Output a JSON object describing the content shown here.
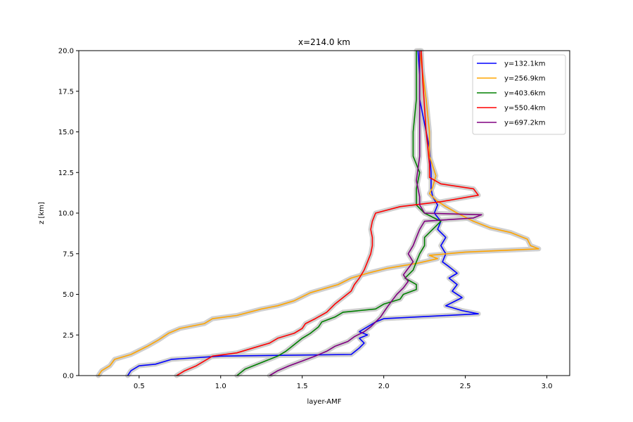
{
  "chart_data": {
    "type": "line",
    "title": "x=214.0 km",
    "xlabel": "layer-AMF",
    "ylabel": "z [km]",
    "xlim": [
      0.13,
      3.14
    ],
    "ylim": [
      0,
      20
    ],
    "xticks": [
      0.5,
      1.0,
      1.5,
      2.0,
      2.5,
      3.0
    ],
    "xtick_labels": [
      "0.5",
      "1.0",
      "1.5",
      "2.0",
      "2.5",
      "3.0"
    ],
    "yticks": [
      0,
      2.5,
      5,
      7.5,
      10,
      12.5,
      15,
      17.5,
      20
    ],
    "ytick_labels": [
      "0.0",
      "2.5",
      "5.0",
      "7.5",
      "10.0",
      "12.5",
      "15.0",
      "17.5",
      "20.0"
    ],
    "grid": false,
    "legend_position": "top-right",
    "band_color": "#c8c8c8",
    "series": [
      {
        "name": "y=132.1km",
        "color": "#0000ff",
        "points": [
          [
            0.43,
            0.0
          ],
          [
            0.45,
            0.3
          ],
          [
            0.5,
            0.6
          ],
          [
            0.6,
            0.7
          ],
          [
            0.7,
            1.0
          ],
          [
            1.0,
            1.2
          ],
          [
            1.8,
            1.3
          ],
          [
            1.85,
            1.7
          ],
          [
            1.88,
            2.0
          ],
          [
            1.85,
            2.3
          ],
          [
            1.9,
            2.5
          ],
          [
            1.85,
            2.7
          ],
          [
            1.9,
            3.0
          ],
          [
            1.95,
            3.3
          ],
          [
            2.0,
            3.5
          ],
          [
            2.58,
            3.8
          ],
          [
            2.48,
            4.0
          ],
          [
            2.38,
            4.3
          ],
          [
            2.48,
            4.8
          ],
          [
            2.42,
            5.2
          ],
          [
            2.45,
            5.6
          ],
          [
            2.4,
            6.0
          ],
          [
            2.45,
            6.3
          ],
          [
            2.4,
            6.7
          ],
          [
            2.36,
            7.0
          ],
          [
            2.38,
            7.5
          ],
          [
            2.35,
            8.0
          ],
          [
            2.38,
            8.5
          ],
          [
            2.33,
            9.0
          ],
          [
            2.35,
            9.5
          ],
          [
            2.31,
            10.0
          ],
          [
            2.33,
            10.5
          ],
          [
            2.3,
            11.0
          ],
          [
            2.29,
            11.5
          ],
          [
            2.29,
            12.5
          ],
          [
            2.28,
            14.0
          ],
          [
            2.25,
            15.5
          ],
          [
            2.22,
            17.0
          ],
          [
            2.22,
            18.5
          ],
          [
            2.21,
            20.0
          ]
        ]
      },
      {
        "name": "y=256.9km",
        "color": "#ffa500",
        "points": [
          [
            0.25,
            0.0
          ],
          [
            0.27,
            0.3
          ],
          [
            0.32,
            0.6
          ],
          [
            0.35,
            1.0
          ],
          [
            0.45,
            1.3
          ],
          [
            0.55,
            1.8
          ],
          [
            0.62,
            2.2
          ],
          [
            0.68,
            2.6
          ],
          [
            0.75,
            2.9
          ],
          [
            0.9,
            3.2
          ],
          [
            0.95,
            3.5
          ],
          [
            1.1,
            3.7
          ],
          [
            1.25,
            4.1
          ],
          [
            1.35,
            4.3
          ],
          [
            1.45,
            4.6
          ],
          [
            1.55,
            5.1
          ],
          [
            1.72,
            5.6
          ],
          [
            1.8,
            6.0
          ],
          [
            1.9,
            6.3
          ],
          [
            2.02,
            6.6
          ],
          [
            2.2,
            6.9
          ],
          [
            2.33,
            7.2
          ],
          [
            2.28,
            7.4
          ],
          [
            2.5,
            7.6
          ],
          [
            2.95,
            7.8
          ],
          [
            2.9,
            8.0
          ],
          [
            2.88,
            8.4
          ],
          [
            2.78,
            8.8
          ],
          [
            2.65,
            9.1
          ],
          [
            2.55,
            9.5
          ],
          [
            2.45,
            10.0
          ],
          [
            2.38,
            10.4
          ],
          [
            2.32,
            10.8
          ],
          [
            2.28,
            11.2
          ],
          [
            2.3,
            11.6
          ],
          [
            2.32,
            12.3
          ],
          [
            2.28,
            13.5
          ],
          [
            2.28,
            15.0
          ],
          [
            2.26,
            17.0
          ],
          [
            2.24,
            18.5
          ],
          [
            2.22,
            20.0
          ]
        ]
      },
      {
        "name": "y=403.6km",
        "color": "#008000",
        "points": [
          [
            1.1,
            0.0
          ],
          [
            1.15,
            0.4
          ],
          [
            1.25,
            0.8
          ],
          [
            1.35,
            1.2
          ],
          [
            1.4,
            1.5
          ],
          [
            1.45,
            1.9
          ],
          [
            1.5,
            2.3
          ],
          [
            1.55,
            2.6
          ],
          [
            1.6,
            3.0
          ],
          [
            1.62,
            3.3
          ],
          [
            1.7,
            3.6
          ],
          [
            1.75,
            3.9
          ],
          [
            1.95,
            4.1
          ],
          [
            2.0,
            4.4
          ],
          [
            2.1,
            4.7
          ],
          [
            2.12,
            5.0
          ],
          [
            2.2,
            5.3
          ],
          [
            2.2,
            5.6
          ],
          [
            2.13,
            6.0
          ],
          [
            2.18,
            6.5
          ],
          [
            2.2,
            7.0
          ],
          [
            2.22,
            7.5
          ],
          [
            2.25,
            8.0
          ],
          [
            2.25,
            8.5
          ],
          [
            2.3,
            9.0
          ],
          [
            2.35,
            9.5
          ],
          [
            2.25,
            10.0
          ],
          [
            2.2,
            10.5
          ],
          [
            2.2,
            11.0
          ],
          [
            2.2,
            11.5
          ],
          [
            2.22,
            12.5
          ],
          [
            2.18,
            13.5
          ],
          [
            2.18,
            15.0
          ],
          [
            2.2,
            17.0
          ],
          [
            2.2,
            18.5
          ],
          [
            2.2,
            20.0
          ]
        ]
      },
      {
        "name": "y=550.4km",
        "color": "#ff0000",
        "points": [
          [
            0.73,
            0.0
          ],
          [
            0.78,
            0.3
          ],
          [
            0.85,
            0.6
          ],
          [
            0.9,
            0.9
          ],
          [
            0.95,
            1.2
          ],
          [
            1.1,
            1.4
          ],
          [
            1.2,
            1.7
          ],
          [
            1.3,
            2.0
          ],
          [
            1.35,
            2.3
          ],
          [
            1.45,
            2.6
          ],
          [
            1.5,
            2.9
          ],
          [
            1.52,
            3.2
          ],
          [
            1.58,
            3.5
          ],
          [
            1.65,
            3.9
          ],
          [
            1.7,
            4.4
          ],
          [
            1.75,
            4.8
          ],
          [
            1.8,
            5.2
          ],
          [
            1.82,
            5.6
          ],
          [
            1.85,
            6.0
          ],
          [
            1.88,
            6.5
          ],
          [
            1.9,
            7.0
          ],
          [
            1.92,
            7.5
          ],
          [
            1.93,
            8.0
          ],
          [
            1.93,
            8.5
          ],
          [
            1.92,
            9.0
          ],
          [
            1.93,
            9.5
          ],
          [
            1.95,
            10.0
          ],
          [
            2.1,
            10.4
          ],
          [
            2.35,
            10.7
          ],
          [
            2.58,
            11.1
          ],
          [
            2.55,
            11.5
          ],
          [
            2.35,
            11.8
          ],
          [
            2.28,
            12.2
          ],
          [
            2.28,
            13.0
          ],
          [
            2.27,
            14.0
          ],
          [
            2.26,
            15.0
          ],
          [
            2.25,
            16.5
          ],
          [
            2.24,
            18.0
          ],
          [
            2.23,
            20.0
          ]
        ]
      },
      {
        "name": "y=697.2km",
        "color": "#800080",
        "points": [
          [
            1.3,
            0.0
          ],
          [
            1.35,
            0.3
          ],
          [
            1.42,
            0.6
          ],
          [
            1.5,
            0.9
          ],
          [
            1.58,
            1.2
          ],
          [
            1.65,
            1.5
          ],
          [
            1.7,
            1.8
          ],
          [
            1.78,
            2.1
          ],
          [
            1.82,
            2.4
          ],
          [
            1.88,
            2.7
          ],
          [
            1.92,
            3.0
          ],
          [
            1.95,
            3.3
          ],
          [
            1.98,
            3.6
          ],
          [
            2.0,
            3.9
          ],
          [
            2.02,
            4.2
          ],
          [
            2.05,
            4.6
          ],
          [
            2.08,
            5.0
          ],
          [
            2.12,
            5.4
          ],
          [
            2.15,
            5.8
          ],
          [
            2.12,
            6.2
          ],
          [
            2.15,
            6.6
          ],
          [
            2.18,
            7.0
          ],
          [
            2.15,
            7.5
          ],
          [
            2.18,
            8.0
          ],
          [
            2.2,
            8.5
          ],
          [
            2.22,
            9.0
          ],
          [
            2.25,
            9.5
          ],
          [
            2.55,
            9.7
          ],
          [
            2.6,
            9.9
          ],
          [
            2.25,
            10.0
          ],
          [
            2.22,
            10.5
          ],
          [
            2.22,
            11.0
          ],
          [
            2.2,
            12.0
          ],
          [
            2.22,
            13.5
          ],
          [
            2.22,
            15.0
          ],
          [
            2.22,
            16.5
          ],
          [
            2.22,
            18.0
          ],
          [
            2.22,
            20.0
          ]
        ]
      }
    ]
  }
}
